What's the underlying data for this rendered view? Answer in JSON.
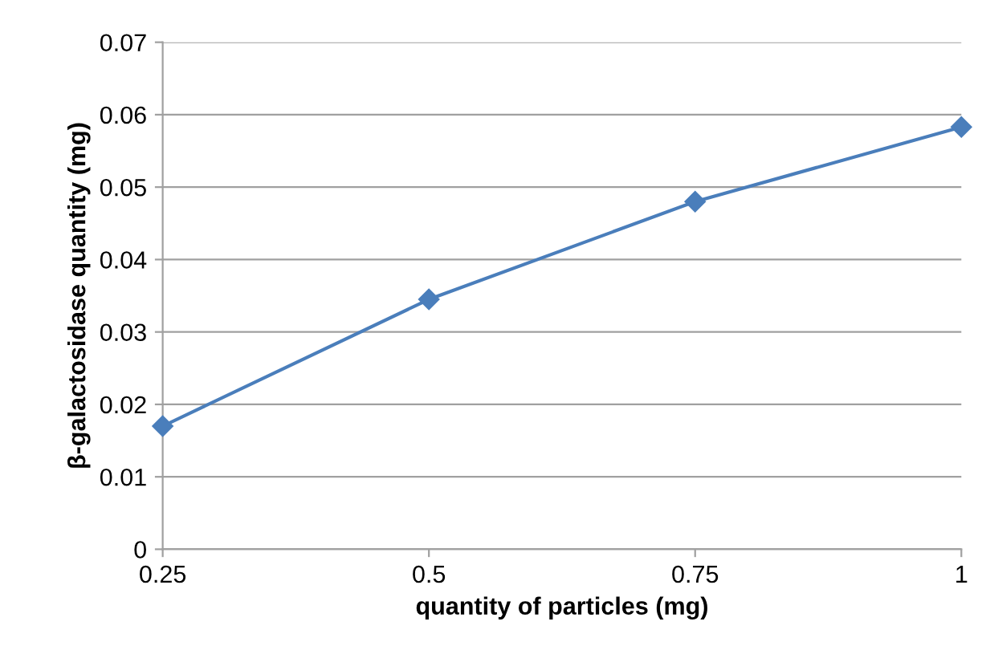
{
  "chart_data": {
    "type": "line",
    "xlabel": "quantity of particles (mg)",
    "ylabel": "β-galactosidase quantity (mg)",
    "x": [
      0.25,
      0.5,
      0.75,
      1
    ],
    "series": [
      {
        "color": "#4a7ebb",
        "values": [
          0.017,
          0.0345,
          0.048,
          0.0583
        ]
      }
    ],
    "xlim": [
      0.25,
      1
    ],
    "xticks": [
      0.25,
      0.5,
      0.75,
      1
    ],
    "ylim": [
      0,
      0.07
    ],
    "yticks": [
      0,
      0.01,
      0.02,
      0.03,
      0.04,
      0.05,
      0.06,
      0.07
    ],
    "grid": "y",
    "marker": "diamond",
    "line_style": "solid"
  }
}
